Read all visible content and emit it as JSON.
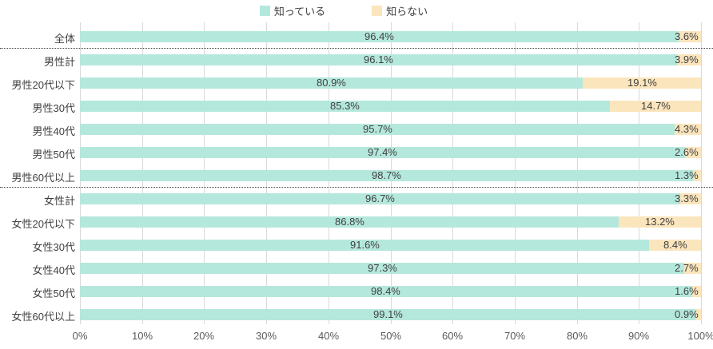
{
  "legend": {
    "items": [
      {
        "label": "知っている",
        "color": "#b5e8dc"
      },
      {
        "label": "知らない",
        "color": "#fbe5bd"
      }
    ]
  },
  "colors": {
    "known": "#b5e8dc",
    "unknown": "#fbe5bd",
    "value_text": "#404040",
    "category_text": "#404040",
    "tick_text": "#595959",
    "gridline": "#d9d9d9",
    "separator": "#404040"
  },
  "chart_data": {
    "type": "bar",
    "orientation": "horizontal",
    "stacked": true,
    "grid": true,
    "legend_position": "top",
    "xlim": [
      0,
      100
    ],
    "x_ticks": [
      "0%",
      "10%",
      "20%",
      "30%",
      "40%",
      "50%",
      "60%",
      "70%",
      "80%",
      "90%",
      "100%"
    ],
    "value_suffix": "%",
    "categories": [
      "全体",
      "男性計",
      "男性20代以下",
      "男性30代",
      "男性40代",
      "男性50代",
      "男性60代以上",
      "女性計",
      "女性20代以下",
      "女性30代",
      "女性40代",
      "女性50代",
      "女性60代以上"
    ],
    "series": [
      {
        "name": "知っている",
        "color": "#b5e8dc",
        "values": [
          96.4,
          96.1,
          80.9,
          85.3,
          95.7,
          97.4,
          98.7,
          96.7,
          86.8,
          91.6,
          97.3,
          98.4,
          99.1
        ]
      },
      {
        "name": "知らない",
        "color": "#fbe5bd",
        "values": [
          3.6,
          3.9,
          19.1,
          14.7,
          4.3,
          2.6,
          1.3,
          3.3,
          13.2,
          8.4,
          2.7,
          1.6,
          0.9
        ]
      }
    ],
    "separators_after_rows": [
      0,
      6
    ]
  }
}
